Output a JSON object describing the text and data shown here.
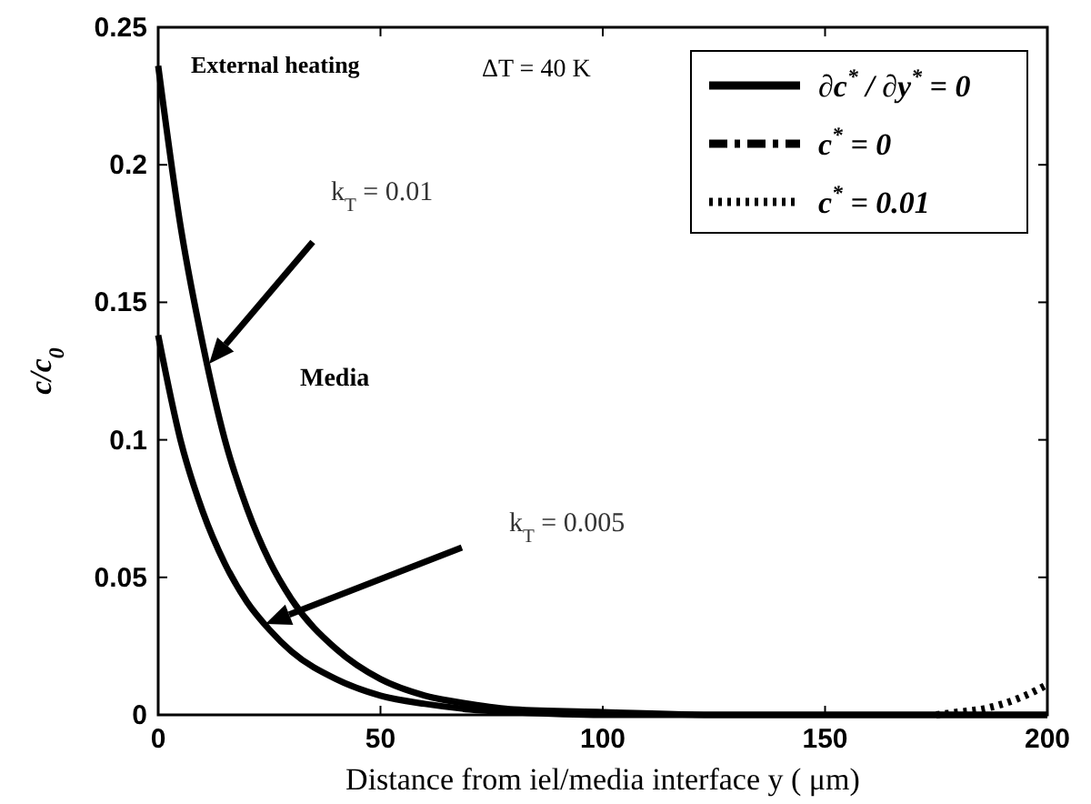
{
  "chart_data": {
    "type": "line",
    "xlabel": "Distance from iel/media interface y ( μm)",
    "ylabel": "c/c$_{0}$",
    "xlim": [
      0,
      200
    ],
    "xticks": [
      0,
      50,
      100,
      150,
      200
    ],
    "ylim": [
      0,
      0.25
    ],
    "yticks": [
      0,
      0.05,
      0.1,
      0.15,
      0.2,
      0.25
    ],
    "x": [
      0,
      5,
      10,
      15,
      20,
      25,
      30,
      40,
      50,
      60,
      70,
      80,
      100,
      125,
      150,
      175,
      200
    ],
    "series": [
      {
        "name": "∂c$^{*}$ / ∂y$^{*}$ = 0",
        "color": "#000000",
        "line_style": "solid",
        "values": [
          0.236,
          0.178,
          0.135,
          0.1,
          0.075,
          0.056,
          0.042,
          0.024,
          0.013,
          0.007,
          0.004,
          0.002,
          0.001,
          0,
          0,
          0,
          0
        ]
      },
      {
        "color": "#000000",
        "line_style": "solid",
        "values": [
          0.138,
          0.1,
          0.074,
          0.055,
          0.041,
          0.031,
          0.023,
          0.013,
          0.007,
          0.004,
          0.002,
          0.001,
          0,
          0,
          0,
          0,
          0
        ]
      },
      {
        "name": "c$^{*}$ = 0",
        "color": "#000000",
        "line_style": "dashdot",
        "values": [
          null,
          null,
          null,
          null,
          null,
          null,
          null,
          null,
          null,
          null,
          null,
          null,
          null,
          null,
          null,
          null,
          null
        ]
      },
      {
        "name": "c$^{*}$ = 0.01",
        "color": "#000000",
        "line_style": "dotted",
        "x": [
          175,
          180,
          185,
          190,
          195,
          200
        ],
        "values": [
          0,
          0.001,
          0.002,
          0.004,
          0.007,
          0.011
        ]
      }
    ],
    "annotations": [
      "External heating",
      "ΔT = 40 K",
      "Media",
      "k$_{T}$ = 0.01",
      "k$_{T}$ = 0.005"
    ],
    "legend": "top right",
    "grid": false
  }
}
